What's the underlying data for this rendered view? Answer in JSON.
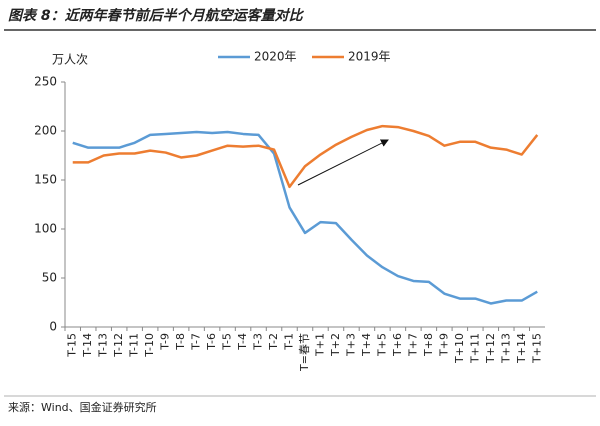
{
  "chart_data": {
    "type": "line",
    "title": "图表 8：近两年春节前后半个月航空运客量对比",
    "y_label": "万人次",
    "source": "来源：Wind、国金证券研究所",
    "categories": [
      "T-15",
      "T-14",
      "T-13",
      "T-12",
      "T-11",
      "T-10",
      "T-9",
      "T-8",
      "T-7",
      "T-6",
      "T-5",
      "T-4",
      "T-3",
      "T-2",
      "T-1",
      "T=春节",
      "T+1",
      "T+2",
      "T+3",
      "T+4",
      "T+5",
      "T+6",
      "T+7",
      "T+8",
      "T+9",
      "T+10",
      "T+11",
      "T+12",
      "T+13",
      "T+14",
      "T+15"
    ],
    "series": [
      {
        "name": "2020年",
        "color": "#5b9bd5",
        "values": [
          188,
          183,
          183,
          183,
          188,
          196,
          197,
          198,
          199,
          198,
          199,
          197,
          196,
          177,
          122,
          96,
          107,
          106,
          89,
          73,
          61,
          52,
          47,
          46,
          34,
          29,
          29,
          24,
          27,
          27,
          36
        ]
      },
      {
        "name": "2019年",
        "color": "#ed7d31",
        "values": [
          168,
          168,
          175,
          177,
          177,
          180,
          178,
          173,
          175,
          180,
          185,
          184,
          185,
          181,
          143,
          164,
          176,
          186,
          194,
          201,
          205,
          204,
          200,
          195,
          185,
          189,
          189,
          183,
          181,
          176,
          196
        ]
      }
    ],
    "ylim": [
      0,
      250
    ],
    "yticks": [
      0,
      50,
      100,
      150,
      200,
      250
    ],
    "grid": false
  }
}
